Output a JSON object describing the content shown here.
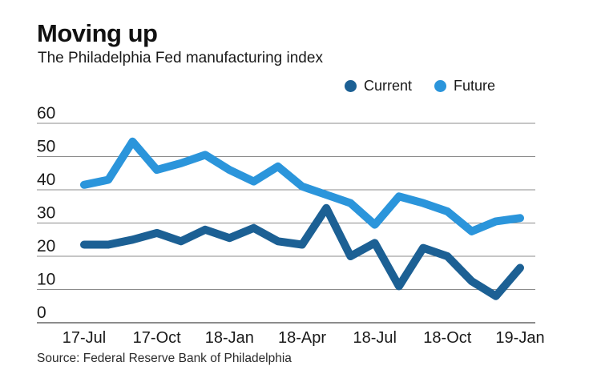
{
  "header": {
    "title": "Moving up",
    "subtitle": "The Philadelphia Fed manufacturing index"
  },
  "source_note": "Source: Federal Reserve Bank of Philadelphia",
  "colors": {
    "current_blue": "#1c6094",
    "future_blue": "#2b95db",
    "gridline": "#8c8c8c",
    "axis_line": "#666666",
    "text": "#1a1a1a"
  },
  "chart_data": {
    "type": "line",
    "title": "Moving up",
    "subtitle": "The Philadelphia Fed manufacturing index",
    "x_tick_labels": [
      "17-Jul",
      "17-Oct",
      "18-Jan",
      "18-Apr",
      "18-Jul",
      "18-Oct",
      "19-Jan"
    ],
    "x_tick_indices": [
      0,
      3,
      6,
      9,
      12,
      15,
      18
    ],
    "points_per_series": 19,
    "x_unit": "monthly, Jul 2017 - Jan 2019",
    "y_ticks": [
      60,
      50,
      40,
      30,
      20,
      10,
      0
    ],
    "ylim": [
      0,
      60
    ],
    "grid": true,
    "legend_position": "top-right",
    "series": [
      {
        "name": "Current",
        "color": "#1c6094",
        "values": [
          23.5,
          23.5,
          25,
          27,
          24.5,
          28,
          25.5,
          28.5,
          24.5,
          23.5,
          34.5,
          20,
          24,
          11,
          22.5,
          20,
          12.5,
          8,
          16.5
        ]
      },
      {
        "name": "Future",
        "color": "#2b95db",
        "values": [
          41.5,
          43,
          54.5,
          46,
          48,
          50.5,
          46,
          42.5,
          47,
          41,
          38.5,
          36,
          29.5,
          38,
          36,
          33.5,
          27.5,
          30.5,
          31.5
        ]
      }
    ]
  }
}
